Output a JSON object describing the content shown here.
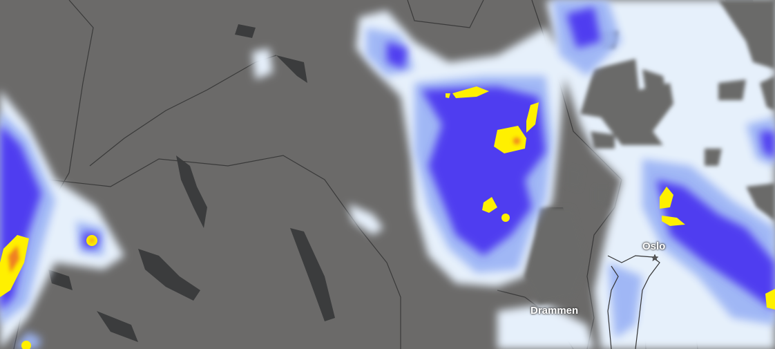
{
  "map": {
    "type": "precipitation-radar",
    "places": [
      {
        "name": "Oslo",
        "marker_icon": "star-icon"
      },
      {
        "name": "Drammen"
      }
    ],
    "colors": {
      "land": "#6b6a69",
      "water": "#3a3b3c",
      "light_precip": "#e6f0fb",
      "moderate_precip": "#9db5f5",
      "heavy_precip": "#4f3df0",
      "very_heavy_precip": "#fff000",
      "extreme_precip": "#f08020"
    }
  }
}
